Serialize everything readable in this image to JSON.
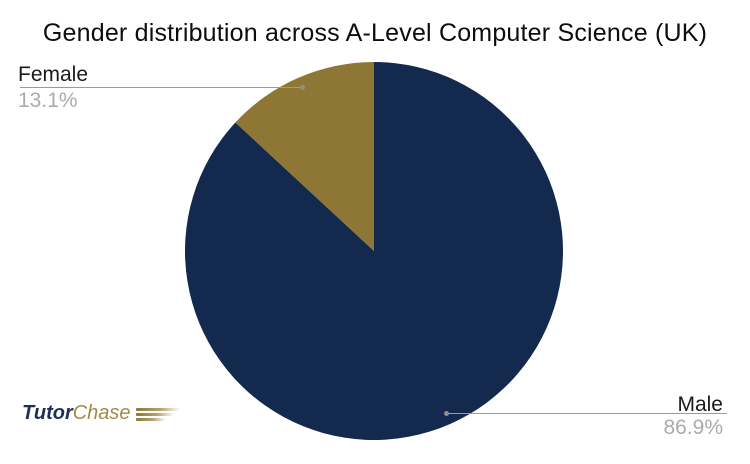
{
  "chart_data": {
    "type": "pie",
    "title": "Gender distribution across A-Level Computer Science (UK)",
    "categories": [
      "Male",
      "Female"
    ],
    "values": [
      86.9,
      13.1
    ],
    "unit": "%",
    "colors": [
      "#13294E",
      "#8E7634"
    ],
    "start_angle": "12-oclock",
    "direction": "clockwise",
    "legend": "none",
    "annotations": [
      {
        "label": "Female",
        "value_label": "13.1%",
        "position": "top-left"
      },
      {
        "label": "Male",
        "value_label": "86.9%",
        "position": "bottom-right"
      }
    ],
    "label_text_color": "#1a1a1a",
    "value_text_color": "#ababab",
    "leader_line_color": "#9b9b9b"
  },
  "logo": {
    "part1": "Tutor",
    "part2": "Chase",
    "part1_color": "#1d2f55",
    "part2_color": "#a3894a"
  }
}
